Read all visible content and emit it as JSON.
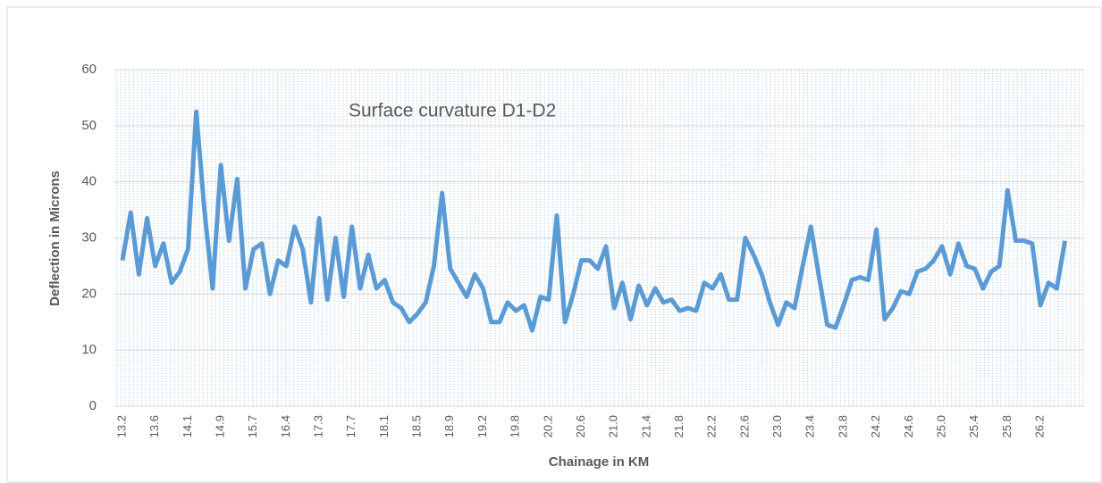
{
  "chart_data": {
    "type": "line",
    "title": "Surface curvature D1-D2",
    "x_label": "Chainage in KM",
    "y_label": "Deflection in Microns",
    "categories": [
      "13.2",
      null,
      null,
      null,
      "13.6",
      null,
      null,
      null,
      "14.1",
      null,
      null,
      null,
      "14.9",
      null,
      null,
      null,
      "15.7",
      null,
      null,
      null,
      "16.4",
      null,
      null,
      null,
      "17.3",
      null,
      null,
      null,
      "17.7",
      null,
      null,
      null,
      "18.1",
      null,
      null,
      null,
      "18.5",
      null,
      null,
      null,
      "18.9",
      null,
      null,
      null,
      "19.2",
      null,
      null,
      null,
      "19.8",
      null,
      null,
      null,
      "20.2",
      null,
      null,
      null,
      "20.6",
      null,
      null,
      null,
      "21.0",
      null,
      null,
      null,
      "21.4",
      null,
      null,
      null,
      "21.8",
      null,
      null,
      null,
      "22.2",
      null,
      null,
      null,
      "22.6",
      null,
      null,
      null,
      "23.0",
      null,
      null,
      null,
      "23.4",
      null,
      null,
      null,
      "23.8",
      null,
      null,
      null,
      "24.2",
      null,
      null,
      null,
      "24.6",
      null,
      null,
      null,
      "25.0",
      null,
      null,
      null,
      "25.4",
      null,
      null,
      null,
      "25.8",
      null,
      null,
      null,
      "26.2",
      null,
      null,
      null
    ],
    "values": [
      26,
      34.5,
      23.5,
      33.5,
      25,
      29,
      22,
      24,
      28,
      52.5,
      35,
      21,
      43,
      29.5,
      40.5,
      21,
      28,
      29,
      20,
      26,
      25,
      32,
      28,
      18.5,
      33.5,
      19,
      30,
      19.5,
      32,
      21,
      27,
      21,
      22.5,
      18.5,
      17.5,
      15,
      16.5,
      18.5,
      25,
      38,
      24.5,
      22,
      19.5,
      23.5,
      21,
      15,
      15,
      18.5,
      17,
      18,
      13.5,
      19.5,
      19,
      34,
      15,
      20,
      26,
      26,
      24.5,
      28.5,
      17.5,
      22,
      15.5,
      21.5,
      18,
      21,
      18.5,
      19,
      17,
      17.5,
      17,
      22,
      21,
      23.5,
      19,
      19,
      30,
      27,
      23.5,
      18.5,
      14.5,
      18.5,
      17.5,
      25,
      32,
      23,
      14.5,
      14,
      18,
      22.5,
      23,
      22.5,
      31.5,
      15.5,
      17.5,
      20.5,
      20,
      24,
      24.5,
      26,
      28.5,
      23.5,
      29,
      25,
      24.5,
      21,
      24,
      25,
      38.5,
      29.5,
      29.5,
      29,
      18,
      22,
      21,
      29.5
    ],
    "color": "#5b9bd5",
    "ylim": [
      0,
      60
    ],
    "yticks": [
      0,
      10,
      20,
      30,
      40,
      50,
      60
    ],
    "grid": true
  }
}
